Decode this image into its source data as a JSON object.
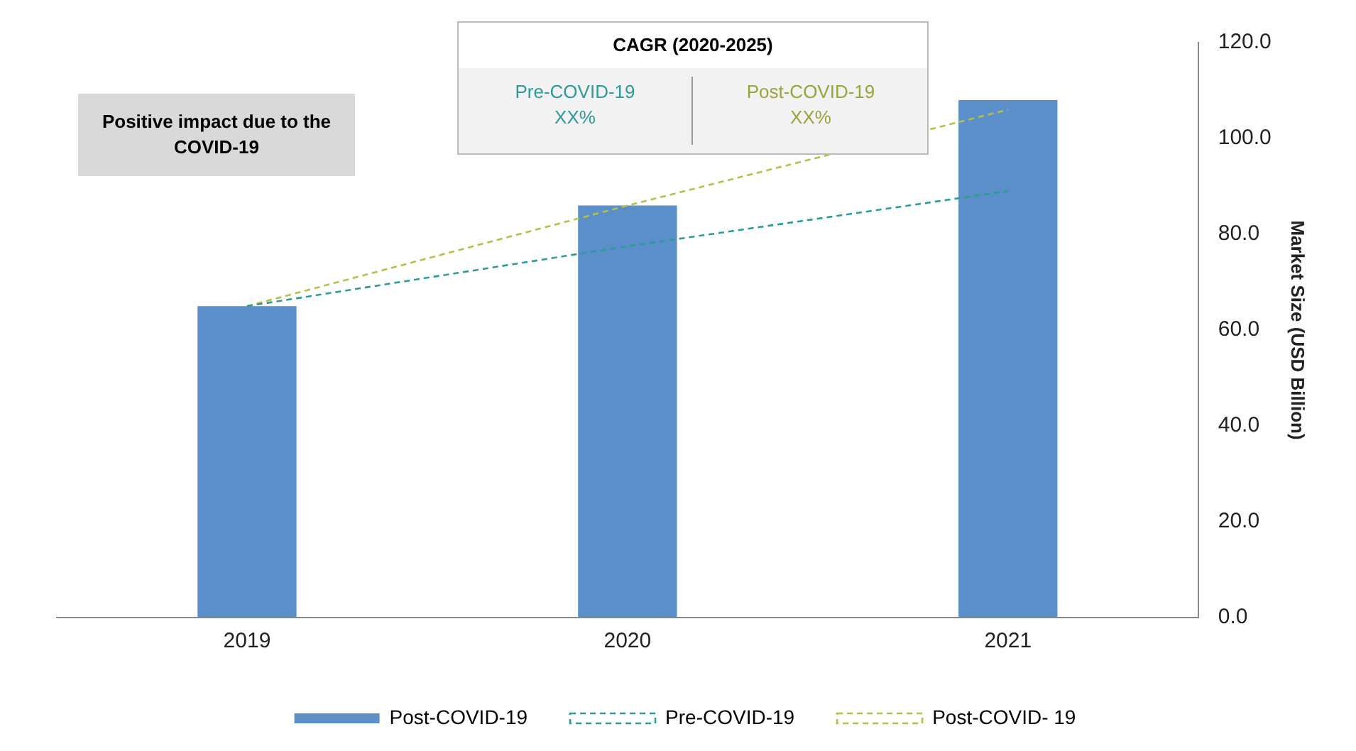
{
  "chart_data": {
    "type": "bar",
    "categories": [
      "2019",
      "2020",
      "2021"
    ],
    "ylabel": "Market Size (USD Billion)",
    "series": [
      {
        "name": "Post-COVID-19",
        "color": "#5b8fc9",
        "values": [
          65,
          86,
          108
        ]
      },
      {
        "name": "Pre-COVID-19",
        "type": "line",
        "color": "#2e9a9a",
        "values": [
          65,
          77.5,
          89
        ],
        "line_style": "dashed",
        "marker": "none"
      },
      {
        "name": "Post-COVID- 19",
        "type": "line",
        "color": "#b5bf4a",
        "values": [
          65,
          86,
          106
        ],
        "line_style": "dashed",
        "marker": "none"
      }
    ],
    "ylim": [
      0,
      120
    ],
    "yticks": [
      {
        "value": 0,
        "label": "0.0"
      },
      {
        "value": 20,
        "label": "20.0"
      },
      {
        "value": 40,
        "label": "40.0"
      },
      {
        "value": 60,
        "label": "60.0"
      },
      {
        "value": 80,
        "label": "80.0"
      },
      {
        "value": 100,
        "label": "100.0"
      },
      {
        "value": 120,
        "label": "120.0"
      }
    ],
    "grid": false,
    "legend": "bottom",
    "annotations": [
      "Positive impact due to the COVID-19",
      "CAGR (2020-2025)",
      "Pre-COVID-19",
      "XX%",
      "Post-COVID-19",
      "XX%"
    ]
  }
}
